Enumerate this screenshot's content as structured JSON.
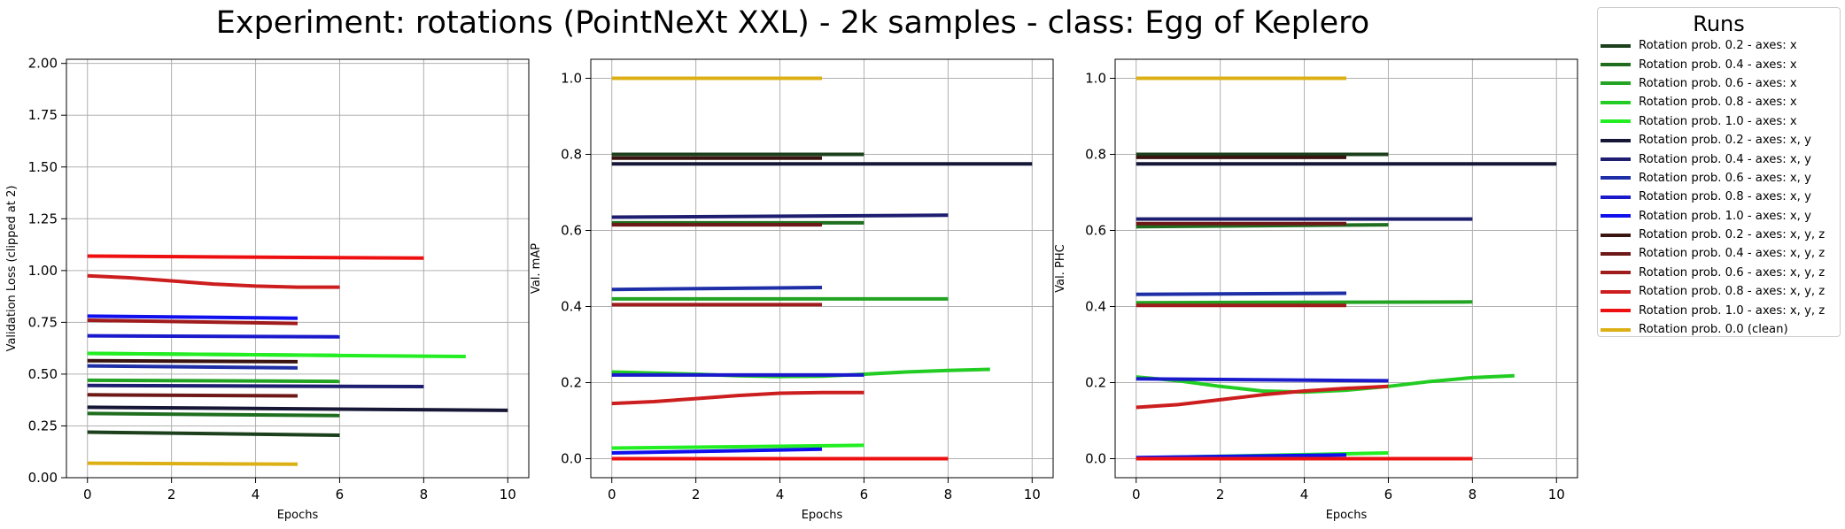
{
  "title": "Experiment: rotations (PointNeXt XXL) - 2k samples - class: Egg of Keplero",
  "legend": {
    "title": "Runs",
    "items": [
      {
        "label": "Rotation prob. 0.2 - axes: x",
        "color": "#1b401b"
      },
      {
        "label": "Rotation prob. 0.4 - axes: x",
        "color": "#1f6e1f"
      },
      {
        "label": "Rotation prob. 0.6 - axes: x",
        "color": "#22a322"
      },
      {
        "label": "Rotation prob. 0.8 - axes: x",
        "color": "#22cc22"
      },
      {
        "label": "Rotation prob. 1.0 - axes: x",
        "color": "#22ee22"
      },
      {
        "label": "Rotation prob. 0.2 - axes: x, y",
        "color": "#161636"
      },
      {
        "label": "Rotation prob. 0.4 - axes: x, y",
        "color": "#1e1e70"
      },
      {
        "label": "Rotation prob. 0.6 - axes: x, y",
        "color": "#1e2ea6"
      },
      {
        "label": "Rotation prob. 0.8 - axes: x, y",
        "color": "#1a1acc"
      },
      {
        "label": "Rotation prob. 1.0 - axes: x, y",
        "color": "#1010ee"
      },
      {
        "label": "Rotation prob. 0.2 - axes: x, y, z",
        "color": "#3a1410"
      },
      {
        "label": "Rotation prob. 0.4 - axes: x, y, z",
        "color": "#6e1818"
      },
      {
        "label": "Rotation prob. 0.6 - axes: x, y, z",
        "color": "#a01c1c"
      },
      {
        "label": "Rotation prob. 0.8 - axes: x, y, z",
        "color": "#cc1e1e"
      },
      {
        "label": "Rotation prob. 1.0 - axes: x, y, z",
        "color": "#ee1010"
      },
      {
        "label": "Rotation prob. 0.0 (clean)",
        "color": "#dcb014"
      }
    ]
  },
  "chart_data": [
    {
      "type": "line",
      "xlabel": "Epochs",
      "ylabel": "Validation Loss (clipped at 2)",
      "xlim": [
        -0.5,
        10.5
      ],
      "ylim": [
        0,
        2.02
      ],
      "xticks": [
        0,
        2,
        4,
        6,
        8,
        10
      ],
      "yticks": [
        0.0,
        0.25,
        0.5,
        0.75,
        1.0,
        1.25,
        1.5,
        1.75,
        2.0
      ],
      "ytick_labels": [
        "0.00",
        "0.25",
        "0.50",
        "0.75",
        "1.00",
        "1.25",
        "1.50",
        "1.75",
        "2.00"
      ],
      "grid": true,
      "series": [
        {
          "run": 0,
          "x": [
            0,
            6
          ],
          "y": [
            0.22,
            0.205
          ]
        },
        {
          "run": 1,
          "x": [
            0,
            6
          ],
          "y": [
            0.31,
            0.3
          ]
        },
        {
          "run": 2,
          "x": [
            0,
            6
          ],
          "y": [
            0.47,
            0.465
          ]
        },
        {
          "run": 3,
          "x": [
            0,
            6
          ],
          "y": [
            0.6,
            0.59
          ]
        },
        {
          "run": 4,
          "x": [
            0,
            9
          ],
          "y": [
            0.6,
            0.585
          ]
        },
        {
          "run": 5,
          "x": [
            0,
            10
          ],
          "y": [
            0.34,
            0.325
          ]
        },
        {
          "run": 6,
          "x": [
            0,
            8
          ],
          "y": [
            0.445,
            0.44
          ]
        },
        {
          "run": 7,
          "x": [
            0,
            5
          ],
          "y": [
            0.54,
            0.53
          ]
        },
        {
          "run": 8,
          "x": [
            0,
            6
          ],
          "y": [
            0.685,
            0.68
          ]
        },
        {
          "run": 9,
          "x": [
            0,
            5
          ],
          "y": [
            0.78,
            0.77
          ]
        },
        {
          "run": 10,
          "x": [
            0,
            5
          ],
          "y": [
            0.565,
            0.56
          ]
        },
        {
          "run": 11,
          "x": [
            0,
            5
          ],
          "y": [
            0.4,
            0.395
          ]
        },
        {
          "run": 12,
          "x": [
            0,
            5
          ],
          "y": [
            0.76,
            0.745
          ]
        },
        {
          "run": 13,
          "x": [
            0,
            1,
            2,
            3,
            4,
            5,
            6
          ],
          "y": [
            0.975,
            0.965,
            0.95,
            0.935,
            0.925,
            0.92,
            0.92
          ]
        },
        {
          "run": 14,
          "x": [
            0,
            8
          ],
          "y": [
            1.07,
            1.06
          ]
        },
        {
          "run": 15,
          "x": [
            0,
            5
          ],
          "y": [
            0.07,
            0.065
          ]
        }
      ]
    },
    {
      "type": "line",
      "xlabel": "Epochs",
      "ylabel": "Val. mAP",
      "xlim": [
        -0.5,
        10.5
      ],
      "ylim": [
        -0.05,
        1.05
      ],
      "xticks": [
        0,
        2,
        4,
        6,
        8,
        10
      ],
      "yticks": [
        0.0,
        0.2,
        0.4,
        0.6,
        0.8,
        1.0
      ],
      "ytick_labels": [
        "0.0",
        "0.2",
        "0.4",
        "0.6",
        "0.8",
        "1.0"
      ],
      "grid": true,
      "series": [
        {
          "run": 0,
          "x": [
            0,
            6
          ],
          "y": [
            0.8,
            0.8
          ]
        },
        {
          "run": 1,
          "x": [
            0,
            6
          ],
          "y": [
            0.62,
            0.62
          ]
        },
        {
          "run": 2,
          "x": [
            0,
            8
          ],
          "y": [
            0.42,
            0.42
          ]
        },
        {
          "run": 3,
          "x": [
            0,
            1,
            2,
            3,
            4,
            5,
            6,
            7,
            8,
            9
          ],
          "y": [
            0.228,
            0.225,
            0.222,
            0.218,
            0.216,
            0.217,
            0.222,
            0.228,
            0.232,
            0.235
          ]
        },
        {
          "run": 4,
          "x": [
            0,
            6
          ],
          "y": [
            0.028,
            0.035
          ]
        },
        {
          "run": 5,
          "x": [
            0,
            10
          ],
          "y": [
            0.775,
            0.775
          ]
        },
        {
          "run": 6,
          "x": [
            0,
            8
          ],
          "y": [
            0.635,
            0.64
          ]
        },
        {
          "run": 7,
          "x": [
            0,
            5
          ],
          "y": [
            0.445,
            0.45
          ]
        },
        {
          "run": 8,
          "x": [
            0,
            6
          ],
          "y": [
            0.22,
            0.22
          ]
        },
        {
          "run": 9,
          "x": [
            0,
            5
          ],
          "y": [
            0.015,
            0.025
          ]
        },
        {
          "run": 10,
          "x": [
            0,
            5
          ],
          "y": [
            0.79,
            0.79
          ]
        },
        {
          "run": 11,
          "x": [
            0,
            5
          ],
          "y": [
            0.615,
            0.615
          ]
        },
        {
          "run": 12,
          "x": [
            0,
            5
          ],
          "y": [
            0.405,
            0.405
          ]
        },
        {
          "run": 13,
          "x": [
            0,
            1,
            2,
            3,
            4,
            5,
            6
          ],
          "y": [
            0.145,
            0.15,
            0.158,
            0.166,
            0.172,
            0.174,
            0.174
          ]
        },
        {
          "run": 14,
          "x": [
            0,
            8
          ],
          "y": [
            0.0,
            0.0
          ]
        },
        {
          "run": 15,
          "x": [
            0,
            5
          ],
          "y": [
            1.0,
            1.0
          ]
        }
      ]
    },
    {
      "type": "line",
      "xlabel": "Epochs",
      "ylabel": "Val. PHC",
      "xlim": [
        -0.5,
        10.5
      ],
      "ylim": [
        -0.05,
        1.05
      ],
      "xticks": [
        0,
        2,
        4,
        6,
        8,
        10
      ],
      "yticks": [
        0.0,
        0.2,
        0.4,
        0.6,
        0.8,
        1.0
      ],
      "ytick_labels": [
        "0.0",
        "0.2",
        "0.4",
        "0.6",
        "0.8",
        "1.0"
      ],
      "grid": true,
      "series": [
        {
          "run": 0,
          "x": [
            0,
            6
          ],
          "y": [
            0.8,
            0.8
          ]
        },
        {
          "run": 1,
          "x": [
            0,
            6
          ],
          "y": [
            0.61,
            0.615
          ]
        },
        {
          "run": 2,
          "x": [
            0,
            8
          ],
          "y": [
            0.41,
            0.412
          ]
        },
        {
          "run": 3,
          "x": [
            0,
            1,
            2,
            3,
            4,
            5,
            6,
            7,
            8,
            9
          ],
          "y": [
            0.215,
            0.205,
            0.19,
            0.178,
            0.175,
            0.18,
            0.19,
            0.203,
            0.213,
            0.218
          ]
        },
        {
          "run": 4,
          "x": [
            0,
            6
          ],
          "y": [
            0.002,
            0.015
          ]
        },
        {
          "run": 5,
          "x": [
            0,
            10
          ],
          "y": [
            0.775,
            0.775
          ]
        },
        {
          "run": 6,
          "x": [
            0,
            8
          ],
          "y": [
            0.63,
            0.63
          ]
        },
        {
          "run": 7,
          "x": [
            0,
            5
          ],
          "y": [
            0.432,
            0.435
          ]
        },
        {
          "run": 8,
          "x": [
            0,
            6
          ],
          "y": [
            0.21,
            0.205
          ]
        },
        {
          "run": 9,
          "x": [
            0,
            5
          ],
          "y": [
            0.003,
            0.01
          ]
        },
        {
          "run": 10,
          "x": [
            0,
            5
          ],
          "y": [
            0.792,
            0.792
          ]
        },
        {
          "run": 11,
          "x": [
            0,
            5
          ],
          "y": [
            0.618,
            0.618
          ]
        },
        {
          "run": 12,
          "x": [
            0,
            5
          ],
          "y": [
            0.403,
            0.403
          ]
        },
        {
          "run": 13,
          "x": [
            0,
            1,
            2,
            3,
            4,
            5,
            6
          ],
          "y": [
            0.135,
            0.142,
            0.155,
            0.168,
            0.178,
            0.185,
            0.19
          ]
        },
        {
          "run": 14,
          "x": [
            0,
            8
          ],
          "y": [
            0.0,
            0.0
          ]
        },
        {
          "run": 15,
          "x": [
            0,
            5
          ],
          "y": [
            1.0,
            1.0
          ]
        }
      ]
    }
  ]
}
